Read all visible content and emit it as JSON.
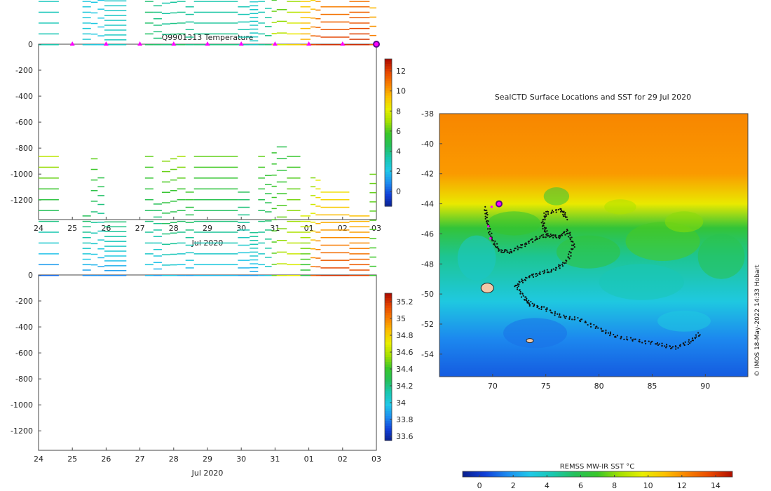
{
  "colors": {
    "jet": [
      "#0a1f8c",
      "#1140d8",
      "#1d8cf0",
      "#20c8e8",
      "#19c7b0",
      "#25c05a",
      "#39c629",
      "#a5e000",
      "#e8ee00",
      "#fcc000",
      "#f88000",
      "#e84800",
      "#b00e00"
    ],
    "marker_magenta": "#ff00ff",
    "marker_outline": "#5a0a8a",
    "track": "#111111"
  },
  "chart_data": [
    {
      "id": "temperature",
      "type": "heatmap",
      "title": "Q9901313  Temperature",
      "xlabel": "Jul 2020",
      "xticks": [
        "24",
        "25",
        "26",
        "27",
        "28",
        "29",
        "30",
        "31",
        "01",
        "02",
        "03"
      ],
      "xlim": [
        24,
        34
      ],
      "ylim": [
        -1350,
        0
      ],
      "yticks": [
        0,
        -200,
        -400,
        -600,
        -800,
        -1000,
        -1200
      ],
      "colorbar": {
        "vmin": -1.5,
        "vmax": 13.2,
        "ticks": [
          "0",
          "2",
          "4",
          "6",
          "8",
          "10",
          "12"
        ],
        "tick_values": [
          0,
          2,
          4,
          6,
          8,
          10,
          12
        ]
      },
      "surface_markers": [
        25.0,
        26.0,
        27.0,
        28.0,
        29.0,
        30.0,
        31.0,
        32.0,
        33.0
      ],
      "last_marker": 34.0,
      "profiles": [
        {
          "x0": 24.0,
          "x1": 24.6,
          "depth": 1000,
          "top": 3.5,
          "bottom": 2.6
        },
        {
          "x0": 25.3,
          "x1": 25.55,
          "depth": 500,
          "top": 2.7,
          "bottom": 2.3
        },
        {
          "x0": 25.55,
          "x1": 25.75,
          "depth": 980,
          "top": 2.4,
          "bottom": 2.1
        },
        {
          "x0": 25.75,
          "x1": 25.95,
          "depth": 820,
          "top": 2.3,
          "bottom": 2.1
        },
        {
          "x0": 25.95,
          "x1": 26.6,
          "depth": 450,
          "top": 3.1,
          "bottom": 2.8
        },
        {
          "x0": 27.15,
          "x1": 27.4,
          "depth": 1000,
          "top": 4.6,
          "bottom": 3.8
        },
        {
          "x0": 27.4,
          "x1": 27.65,
          "depth": 600,
          "top": 4.4,
          "bottom": 3.6
        },
        {
          "x0": 27.65,
          "x1": 27.9,
          "depth": 960,
          "top": 4.2,
          "bottom": 2.5
        },
        {
          "x0": 27.9,
          "x1": 28.1,
          "depth": 980,
          "top": 4.6,
          "bottom": 2.5
        },
        {
          "x0": 28.1,
          "x1": 28.35,
          "depth": 1000,
          "top": 4.7,
          "bottom": 2.4
        },
        {
          "x0": 28.35,
          "x1": 28.6,
          "depth": 700,
          "top": 4.0,
          "bottom": 3.2
        },
        {
          "x0": 28.6,
          "x1": 29.9,
          "depth": 1000,
          "top": 4.2,
          "bottom": 2.5
        },
        {
          "x0": 29.9,
          "x1": 30.25,
          "depth": 700,
          "top": 3.5,
          "bottom": 3.0
        },
        {
          "x0": 30.25,
          "x1": 30.5,
          "depth": 360,
          "top": 3.0,
          "bottom": 2.8
        },
        {
          "x0": 30.5,
          "x1": 30.7,
          "depth": 1000,
          "top": 3.8,
          "bottom": 2.4
        },
        {
          "x0": 30.7,
          "x1": 30.9,
          "depth": 840,
          "top": 4.3,
          "bottom": 2.4
        },
        {
          "x0": 30.9,
          "x1": 31.05,
          "depth": 1030,
          "top": 8.8,
          "bottom": 2.5
        },
        {
          "x0": 31.05,
          "x1": 31.35,
          "depth": 1080,
          "top": 8.5,
          "bottom": 2.8
        },
        {
          "x0": 31.35,
          "x1": 31.75,
          "depth": 1000,
          "top": 9.5,
          "bottom": 4.0
        },
        {
          "x0": 31.75,
          "x1": 32.05,
          "depth": 500,
          "top": 10.0,
          "bottom": 9.0
        },
        {
          "x0": 32.05,
          "x1": 32.2,
          "depth": 820,
          "top": 12.5,
          "bottom": 6.0
        },
        {
          "x0": 32.2,
          "x1": 32.35,
          "depth": 800,
          "top": 12.6,
          "bottom": 8.5
        },
        {
          "x0": 32.35,
          "x1": 33.2,
          "depth": 700,
          "top": 12.8,
          "bottom": 9.0
        },
        {
          "x0": 33.2,
          "x1": 33.8,
          "depth": 500,
          "top": 12.8,
          "bottom": 10.5
        },
        {
          "x0": 33.8,
          "x1": 34.0,
          "depth": 850,
          "top": 11.5,
          "bottom": 7.5
        }
      ]
    },
    {
      "id": "salinity",
      "type": "heatmap",
      "title": "",
      "xlabel": "Jul 2020",
      "xticks": [
        "24",
        "25",
        "26",
        "27",
        "28",
        "29",
        "30",
        "31",
        "01",
        "02",
        "03"
      ],
      "xlim": [
        24,
        34
      ],
      "ylim": [
        -1350,
        0
      ],
      "yticks": [
        0,
        -200,
        -400,
        -600,
        -800,
        -1000,
        -1200
      ],
      "colorbar": {
        "vmin": 33.55,
        "vmax": 35.3,
        "ticks": [
          "33.6",
          "33.8",
          "34",
          "34.2",
          "34.4",
          "34.6",
          "34.8",
          "35",
          "35.2"
        ],
        "tick_values": [
          33.6,
          33.8,
          34.0,
          34.2,
          34.4,
          34.6,
          34.8,
          35.0,
          35.2
        ]
      },
      "profiles": [
        {
          "x0": 24.0,
          "x1": 24.6,
          "depth": 1000,
          "top": 33.7,
          "bottom": 34.65
        },
        {
          "x0": 25.3,
          "x1": 25.55,
          "depth": 500,
          "top": 33.8,
          "bottom": 34.3
        },
        {
          "x0": 25.55,
          "x1": 25.75,
          "depth": 980,
          "top": 33.8,
          "bottom": 34.5
        },
        {
          "x0": 25.75,
          "x1": 25.95,
          "depth": 820,
          "top": 33.8,
          "bottom": 34.35
        },
        {
          "x0": 25.95,
          "x1": 26.6,
          "depth": 450,
          "top": 33.8,
          "bottom": 34.25
        },
        {
          "x0": 27.15,
          "x1": 27.4,
          "depth": 1000,
          "top": 33.9,
          "bottom": 34.5
        },
        {
          "x0": 27.4,
          "x1": 27.65,
          "depth": 600,
          "top": 33.85,
          "bottom": 34.3
        },
        {
          "x0": 27.65,
          "x1": 27.9,
          "depth": 960,
          "top": 33.95,
          "bottom": 34.55
        },
        {
          "x0": 27.9,
          "x1": 28.1,
          "depth": 980,
          "top": 33.95,
          "bottom": 34.55
        },
        {
          "x0": 28.1,
          "x1": 28.35,
          "depth": 1000,
          "top": 33.85,
          "bottom": 34.6
        },
        {
          "x0": 28.35,
          "x1": 28.6,
          "depth": 700,
          "top": 33.85,
          "bottom": 34.45
        },
        {
          "x0": 28.6,
          "x1": 29.9,
          "depth": 1000,
          "top": 33.9,
          "bottom": 34.5
        },
        {
          "x0": 29.9,
          "x1": 30.25,
          "depth": 700,
          "top": 33.85,
          "bottom": 34.3
        },
        {
          "x0": 30.25,
          "x1": 30.5,
          "depth": 360,
          "top": 33.85,
          "bottom": 34.2
        },
        {
          "x0": 30.5,
          "x1": 30.7,
          "depth": 1000,
          "top": 33.9,
          "bottom": 34.5
        },
        {
          "x0": 30.7,
          "x1": 30.9,
          "depth": 840,
          "top": 34.0,
          "bottom": 34.4
        },
        {
          "x0": 30.9,
          "x1": 31.05,
          "depth": 1030,
          "top": 34.5,
          "bottom": 34.4
        },
        {
          "x0": 31.05,
          "x1": 31.35,
          "depth": 1080,
          "top": 34.7,
          "bottom": 34.3
        },
        {
          "x0": 31.35,
          "x1": 31.75,
          "depth": 1000,
          "top": 34.75,
          "bottom": 34.4
        },
        {
          "x0": 31.75,
          "x1": 32.05,
          "depth": 500,
          "top": 34.3,
          "bottom": 34.7
        },
        {
          "x0": 32.05,
          "x1": 32.2,
          "depth": 820,
          "top": 35.15,
          "bottom": 34.5
        },
        {
          "x0": 32.2,
          "x1": 32.35,
          "depth": 800,
          "top": 35.2,
          "bottom": 34.7
        },
        {
          "x0": 32.35,
          "x1": 33.2,
          "depth": 700,
          "top": 35.25,
          "bottom": 34.75
        },
        {
          "x0": 33.2,
          "x1": 33.8,
          "depth": 500,
          "top": 35.2,
          "bottom": 34.85
        },
        {
          "x0": 33.8,
          "x1": 34.0,
          "depth": 850,
          "top": 34.4,
          "bottom": 34.5
        }
      ]
    },
    {
      "id": "sst_map",
      "type": "heatmap",
      "title": "SealCTD Surface Locations and SST for 29 Jul 2020",
      "xlim": [
        65,
        94
      ],
      "ylim": [
        -55.5,
        -38
      ],
      "xticks": [
        70,
        75,
        80,
        85,
        90
      ],
      "yticks": [
        -38,
        -40,
        -42,
        -44,
        -46,
        -48,
        -50,
        -52,
        -54
      ],
      "colorbar": {
        "label": "REMSS MW-IR SST °C",
        "vmin": -1,
        "vmax": 15,
        "ticks": [
          "0",
          "2",
          "4",
          "6",
          "8",
          "10",
          "12",
          "14"
        ],
        "tick_values": [
          0,
          2,
          4,
          6,
          8,
          10,
          12,
          14
        ]
      },
      "sst_bands": [
        {
          "lat": -38,
          "value": 12.2
        },
        {
          "lat": -42,
          "value": 11.8
        },
        {
          "lat": -44,
          "value": 9.8
        },
        {
          "lat": -45.6,
          "value": 6.6
        },
        {
          "lat": -47.5,
          "value": 4.8
        },
        {
          "lat": -50.5,
          "value": 3.2
        },
        {
          "lat": -53,
          "value": 1.6
        },
        {
          "lat": -55.5,
          "value": 0.8
        }
      ],
      "track": [
        [
          69.3,
          -44.3
        ],
        [
          69.5,
          -45.2
        ],
        [
          69.9,
          -46.3
        ],
        [
          70.6,
          -47.1
        ],
        [
          71.6,
          -47.2
        ],
        [
          72.8,
          -46.8
        ],
        [
          74.0,
          -46.3
        ],
        [
          75.2,
          -46.1
        ],
        [
          76.2,
          -46.2
        ],
        [
          77.1,
          -45.8
        ],
        [
          77.6,
          -46.8
        ],
        [
          77.0,
          -47.8
        ],
        [
          75.8,
          -48.4
        ],
        [
          74.5,
          -48.6
        ],
        [
          73.3,
          -48.9
        ],
        [
          72.2,
          -49.4
        ],
        [
          73.0,
          -50.3
        ],
        [
          73.6,
          -50.7
        ],
        [
          75.0,
          -51.0
        ],
        [
          76.5,
          -51.5
        ],
        [
          78.2,
          -51.7
        ],
        [
          80.0,
          -52.3
        ],
        [
          81.5,
          -52.8
        ],
        [
          83.5,
          -53.1
        ],
        [
          85.5,
          -53.3
        ],
        [
          87.0,
          -53.6
        ],
        [
          88.5,
          -53.2
        ],
        [
          89.6,
          -52.6
        ]
      ],
      "track_branch": [
        [
          75.2,
          -46.1
        ],
        [
          74.7,
          -45.4
        ],
        [
          75.0,
          -44.6
        ],
        [
          76.5,
          -44.4
        ],
        [
          77.0,
          -45.0
        ]
      ],
      "latest_position": [
        70.6,
        -44.0
      ],
      "recent_positions": [
        [
          69.9,
          -44.2
        ],
        [
          69.6,
          -45.5
        ],
        [
          69.8,
          -46.3
        ]
      ],
      "land": [
        [
          69.5,
          -49.6
        ],
        [
          73.5,
          -53.1
        ]
      ],
      "side_label": "© IMOS 18-May-2022 14:33 Hobart"
    }
  ]
}
